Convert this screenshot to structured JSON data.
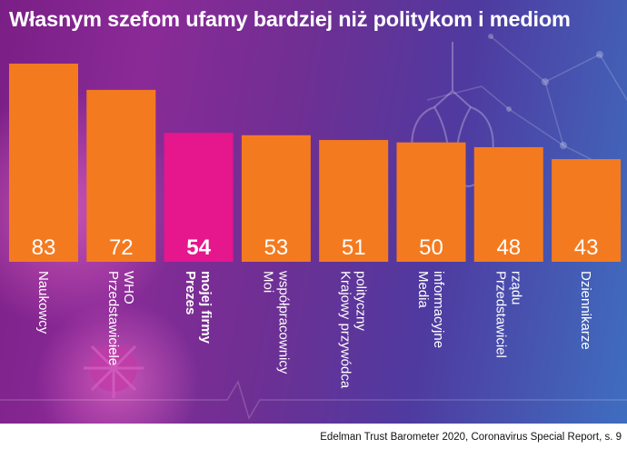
{
  "title": "Własnym szefom ufamy bardziej niż politykom i mediom",
  "source": "Edelman Trust Barometer 2020, Coronavirus Special Report, s. 9",
  "colors": {
    "bar": "#f47a20",
    "highlight": "#e6168c",
    "text": "#ffffff"
  },
  "chart_data": {
    "type": "bar",
    "title": "Własnym szefom ufamy bardziej niż politykom i mediom",
    "categories": [
      [
        "Naukowcy"
      ],
      [
        "Przedstawiciele",
        "WHO"
      ],
      [
        "Prezes",
        "mojej firmy"
      ],
      [
        "Moi",
        "współpracownicy"
      ],
      [
        "Krajowy przywódca",
        "polityczny"
      ],
      [
        "Media",
        "informacyjne"
      ],
      [
        "Przedstawiciel",
        "rządu"
      ],
      [
        "Dziennikarze"
      ]
    ],
    "values": [
      83,
      72,
      54,
      53,
      51,
      50,
      48,
      43
    ],
    "highlight_index": 2,
    "ylim": [
      0,
      83
    ]
  }
}
